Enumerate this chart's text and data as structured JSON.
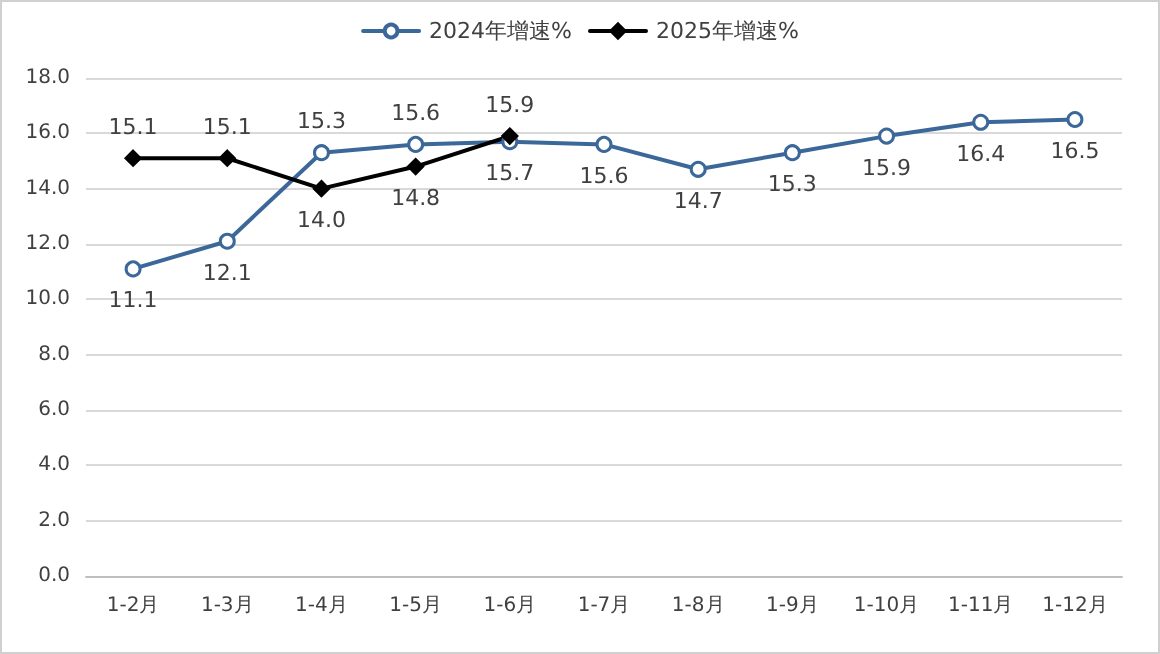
{
  "chart_data": {
    "type": "line",
    "categories": [
      "1-2月",
      "1-3月",
      "1-4月",
      "1-5月",
      "1-6月",
      "1-7月",
      "1-8月",
      "1-9月",
      "1-10月",
      "1-11月",
      "1-12月"
    ],
    "series": [
      {
        "name": "2024年增速%",
        "color": "#3c6899",
        "marker": "circle",
        "values": [
          11.1,
          12.1,
          15.3,
          15.6,
          15.7,
          15.6,
          14.7,
          15.3,
          15.9,
          16.4,
          16.5
        ],
        "value_labels": [
          "11.1",
          "12.1",
          "15.3",
          "15.6",
          "15.7",
          "15.6",
          "14.7",
          "15.3",
          "15.9",
          "16.4",
          "16.5"
        ]
      },
      {
        "name": "2025年增速%",
        "color": "#000000",
        "marker": "diamond",
        "values": [
          15.1,
          15.1,
          14.0,
          14.8,
          15.9,
          null,
          null,
          null,
          null,
          null,
          null
        ],
        "value_labels": [
          "15.1",
          "15.1",
          "14.0",
          "14.8",
          "15.9",
          null,
          null,
          null,
          null,
          null,
          null
        ]
      }
    ],
    "ylim": [
      0,
      18
    ],
    "yticks": [
      {
        "value": 0,
        "label": "0.0"
      },
      {
        "value": 2,
        "label": "2.0"
      },
      {
        "value": 4,
        "label": "4.0"
      },
      {
        "value": 6,
        "label": "6.0"
      },
      {
        "value": 8,
        "label": "8.0"
      },
      {
        "value": 10,
        "label": "10.0"
      },
      {
        "value": 12,
        "label": "12.0"
      },
      {
        "value": 14,
        "label": "14.0"
      },
      {
        "value": 16,
        "label": "16.0"
      },
      {
        "value": 18,
        "label": "18.0"
      }
    ],
    "grid": "y",
    "legend": "top",
    "line_style": "solid"
  }
}
